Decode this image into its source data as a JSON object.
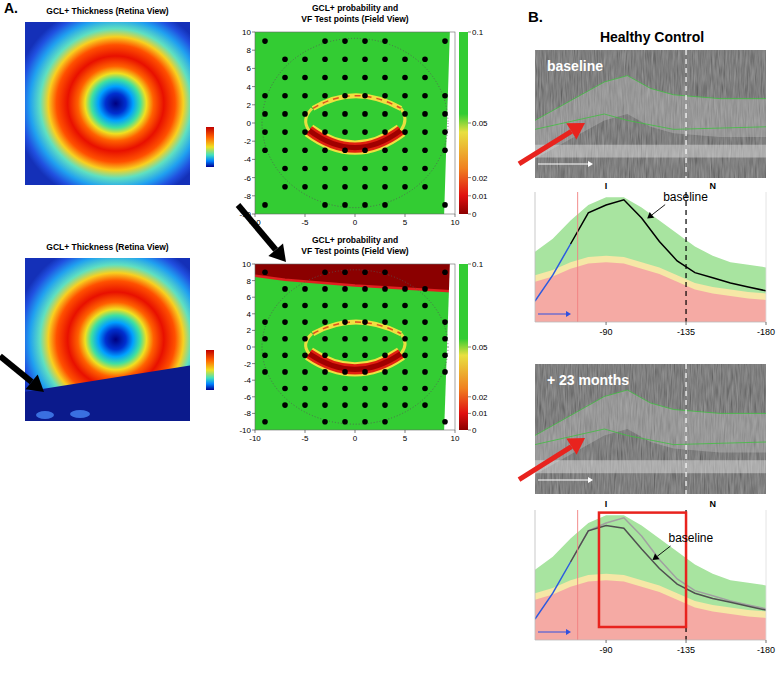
{
  "figure": {
    "panel_labels": [
      "A.",
      "B."
    ],
    "group_title": "Healthy Control",
    "thickness_titles": [
      "GCL+ Thickness (Retina View)",
      "GCL+ Thickness (Retina View)"
    ],
    "oct_labels": [
      "baseline",
      "+ 23 months"
    ]
  },
  "chart_data": [
    {
      "type": "scatter",
      "title": "GCL+ probability and",
      "subtitle": "VF Test points (Field View)",
      "x": [
        -9,
        -3,
        -1,
        1,
        3,
        9,
        -7,
        -5,
        -3,
        -1,
        1,
        3,
        5,
        7,
        -7,
        -5,
        -3,
        -1,
        1,
        3,
        5,
        7,
        -9,
        -7,
        -5,
        -3,
        -1,
        1,
        3,
        5,
        7,
        9,
        -9,
        -7,
        -5,
        -3,
        -1,
        1,
        3,
        5,
        7,
        9,
        -9,
        -7,
        -5,
        -3,
        -1,
        1,
        3,
        5,
        7,
        9,
        -9,
        -7,
        -5,
        -3,
        -1,
        1,
        3,
        5,
        7,
        9,
        -7,
        -5,
        -3,
        -1,
        1,
        3,
        5,
        7,
        -7,
        -5,
        -3,
        -1,
        1,
        3,
        5,
        7,
        -9,
        -3,
        -1,
        1,
        3,
        9
      ],
      "y": [
        9,
        9,
        9,
        9,
        9,
        9,
        7,
        7,
        7,
        7,
        7,
        7,
        7,
        7,
        5,
        5,
        5,
        5,
        5,
        5,
        5,
        5,
        3,
        3,
        3,
        3,
        3,
        3,
        3,
        3,
        3,
        3,
        1,
        1,
        1,
        1,
        1,
        1,
        1,
        1,
        1,
        1,
        -1,
        -1,
        -1,
        -1,
        -1,
        -1,
        -1,
        -1,
        -1,
        -1,
        -3,
        -3,
        -3,
        -3,
        -3,
        -3,
        -3,
        -3,
        -3,
        -3,
        -5,
        -5,
        -5,
        -5,
        -5,
        -5,
        -5,
        -5,
        -7,
        -7,
        -7,
        -7,
        -7,
        -7,
        -7,
        -7,
        -9,
        -9,
        -9,
        -9,
        -9,
        -9
      ],
      "color": "#000000",
      "marker": "circle",
      "xlim": [
        -10,
        10
      ],
      "ylim": [
        -10,
        10
      ],
      "xticks": [
        -10,
        -5,
        0,
        5,
        10
      ],
      "yticks": [
        10,
        8,
        6,
        4,
        2,
        0,
        -2,
        -4,
        -6,
        -8,
        -10
      ],
      "colorbar": {
        "range": [
          0,
          0.1
        ],
        "ticks": [
          0.1,
          0.05,
          0.02,
          0.01,
          0
        ]
      }
    },
    {
      "type": "scatter",
      "title": "GCL+ probability and",
      "subtitle": "VF Test points (Field View)",
      "x": [
        -9,
        -3,
        -1,
        1,
        3,
        9,
        -7,
        -5,
        -3,
        -1,
        1,
        3,
        5,
        7,
        -7,
        -5,
        -3,
        -1,
        1,
        3,
        5,
        7,
        -9,
        -7,
        -5,
        -3,
        -1,
        1,
        3,
        5,
        7,
        9,
        -9,
        -7,
        -5,
        -3,
        -1,
        1,
        3,
        5,
        7,
        9,
        -9,
        -7,
        -5,
        -3,
        -1,
        1,
        3,
        5,
        7,
        9,
        -9,
        -7,
        -5,
        -3,
        -1,
        1,
        3,
        5,
        7,
        9,
        -7,
        -5,
        -3,
        -1,
        1,
        3,
        5,
        7,
        -7,
        -5,
        -3,
        -1,
        1,
        3,
        5,
        7,
        -9,
        -3,
        -1,
        1,
        3,
        9
      ],
      "y": [
        9,
        9,
        9,
        9,
        9,
        9,
        7,
        7,
        7,
        7,
        7,
        7,
        7,
        7,
        5,
        5,
        5,
        5,
        5,
        5,
        5,
        5,
        3,
        3,
        3,
        3,
        3,
        3,
        3,
        3,
        3,
        3,
        1,
        1,
        1,
        1,
        1,
        1,
        1,
        1,
        1,
        1,
        -1,
        -1,
        -1,
        -1,
        -1,
        -1,
        -1,
        -1,
        -1,
        -1,
        -3,
        -3,
        -3,
        -3,
        -3,
        -3,
        -3,
        -3,
        -3,
        -3,
        -5,
        -5,
        -5,
        -5,
        -5,
        -5,
        -5,
        -5,
        -7,
        -7,
        -7,
        -7,
        -7,
        -7,
        -7,
        -7,
        -9,
        -9,
        -9,
        -9,
        -9,
        -9
      ],
      "color": "#000000",
      "marker": "circle",
      "xlim": [
        -10,
        10
      ],
      "ylim": [
        -10,
        10
      ],
      "xticks": [
        -10,
        -5,
        0,
        5,
        10
      ],
      "yticks": [
        10,
        8,
        6,
        4,
        2,
        0,
        -2,
        -4,
        -6,
        -8,
        -10
      ],
      "colorbar": {
        "range": [
          0,
          0.1
        ],
        "ticks": [
          0.1,
          0.05,
          0.02,
          0.01,
          0
        ]
      }
    },
    {
      "type": "line",
      "x": [
        -50,
        -60,
        -70,
        -80,
        -90,
        -100,
        -110,
        -120,
        -130,
        -140,
        -150,
        -160,
        -170,
        -180
      ],
      "xlim": [
        -50,
        -180
      ],
      "ylim": [
        0,
        100
      ],
      "xticks": [
        -90,
        -135,
        -180
      ],
      "tick_labels": "x",
      "series": [
        {
          "type": "area",
          "color": "#a8e4a0",
          "values": [
            54,
            64,
            78,
            90,
            96,
            96,
            88,
            78,
            68,
            58,
            51,
            46,
            44,
            42
          ]
        },
        {
          "type": "area",
          "color": "#f6e7a6",
          "values": [
            36,
            40,
            46,
            50,
            51,
            50,
            46,
            42,
            36,
            30,
            27,
            25,
            23,
            22
          ]
        },
        {
          "type": "area",
          "color": "#f5aaa4",
          "values": [
            31,
            35,
            41,
            45,
            46,
            45,
            41,
            37,
            31,
            25,
            22,
            20,
            18,
            17
          ]
        },
        {
          "type": "line",
          "color": "#2c5be0",
          "values": [
            16,
            36,
            60,
            null,
            null,
            null,
            null,
            null,
            null,
            null,
            null,
            null,
            null,
            null
          ]
        },
        {
          "type": "line",
          "color": "#000000",
          "values": [
            null,
            null,
            60,
            84,
            90,
            94,
            80,
            62,
            47,
            38,
            34,
            30,
            27,
            24
          ]
        }
      ],
      "vlines": [
        {
          "x": -74,
          "color": "#f08080",
          "line_style": "solid"
        },
        {
          "x": -135,
          "color": "#000000",
          "line_style": "dashed"
        }
      ],
      "sector_labels": [
        {
          "x": -90,
          "label": "I"
        },
        {
          "x": -150,
          "label": "N"
        }
      ],
      "annotations": [
        {
          "text": "baseline",
          "x": -112,
          "y": 78
        }
      ]
    },
    {
      "type": "line",
      "x": [
        -50,
        -60,
        -70,
        -80,
        -90,
        -100,
        -110,
        -120,
        -130,
        -140,
        -150,
        -160,
        -170,
        -180
      ],
      "xlim": [
        -50,
        -180
      ],
      "ylim": [
        0,
        100
      ],
      "xticks": [
        -90,
        -135,
        -180
      ],
      "tick_labels": "x",
      "series": [
        {
          "type": "area",
          "color": "#a8e4a0",
          "values": [
            54,
            64,
            78,
            90,
            96,
            96,
            88,
            78,
            68,
            58,
            51,
            46,
            44,
            42
          ]
        },
        {
          "type": "area",
          "color": "#f6e7a6",
          "values": [
            36,
            40,
            46,
            50,
            51,
            50,
            46,
            42,
            36,
            30,
            27,
            25,
            23,
            22
          ]
        },
        {
          "type": "area",
          "color": "#f5aaa4",
          "values": [
            31,
            35,
            41,
            45,
            46,
            45,
            41,
            37,
            31,
            25,
            22,
            20,
            18,
            17
          ]
        },
        {
          "type": "line",
          "color": "#2c5be0",
          "values": [
            16,
            36,
            60,
            null,
            null,
            null,
            null,
            null,
            null,
            null,
            null,
            null,
            null,
            null
          ]
        },
        {
          "type": "line",
          "color": "#a0a0a0",
          "values": [
            null,
            null,
            60,
            84,
            90,
            94,
            80,
            62,
            47,
            38,
            34,
            30,
            27,
            24
          ]
        },
        {
          "type": "line",
          "color": "#505050",
          "values": [
            null,
            null,
            60,
            84,
            88,
            86,
            70,
            55,
            43,
            36,
            32,
            29,
            26,
            23
          ]
        }
      ],
      "vlines": [
        {
          "x": -74,
          "color": "#f08080",
          "line_style": "solid"
        },
        {
          "x": -135,
          "color": "#000000",
          "line_style": "dashed"
        }
      ],
      "sector_labels": [
        {
          "x": -90,
          "label": "I"
        },
        {
          "x": -150,
          "label": "N"
        }
      ],
      "annotations": [
        {
          "text": "baseline",
          "x": -115,
          "y": 60
        }
      ],
      "highlight": {
        "x": [
          -86,
          -135
        ],
        "y": [
          10,
          98
        ]
      }
    }
  ]
}
